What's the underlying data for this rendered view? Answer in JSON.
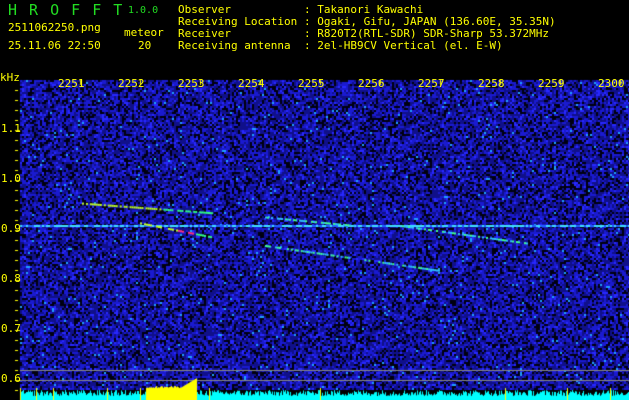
{
  "header": {
    "app_name": "H R O F F T",
    "version": "1.0.0",
    "filename": "2511062250.png",
    "datetime": "25.11.06 22:50",
    "meteor_label": "meteor",
    "meteor_count": "20",
    "info": [
      {
        "label": "Observer",
        "value": ": Takanori Kawachi"
      },
      {
        "label": "Receiving Location",
        "value": ": Ogaki, Gifu, JAPAN (136.60E, 35.35N)"
      },
      {
        "label": "Receiver",
        "value": ": R820T2(RTL-SDR) SDR-Sharp 53.372MHz"
      },
      {
        "label": "Receiving antenna",
        "value": ": 2el-HB9CV Vertical (el. E-W)"
      }
    ]
  },
  "colors": {
    "text": "#ffff00",
    "title": "#22dd22",
    "background_noise": "#1010a0",
    "power_bar": "#00ffff",
    "peak": "#ffff00"
  },
  "chart_data": {
    "type": "heatmap",
    "ylabel": "kHz",
    "x_ticks": [
      "2251",
      "2252",
      "2253",
      "2254",
      "2255",
      "2256",
      "2257",
      "2258",
      "2259",
      "2300"
    ],
    "y_ticks": [
      "1.1",
      "1.0",
      "0.9",
      "0.8",
      "0.7",
      "0.6"
    ],
    "ylim": [
      0.58,
      1.2
    ],
    "carrier_khz": 0.91,
    "meteor_traces": [
      {
        "start_time": "22:51:00",
        "end_time": "22:53:15",
        "freq_start": 0.955,
        "freq_end": 0.935
      },
      {
        "start_time": "22:52:00",
        "end_time": "22:53:12",
        "freq_start": 0.915,
        "freq_end": 0.887
      },
      {
        "start_time": "22:54:05",
        "end_time": "22:55:35",
        "freq_start": 0.927,
        "freq_end": 0.91
      },
      {
        "start_time": "22:54:05",
        "end_time": "22:57:00",
        "freq_start": 0.87,
        "freq_end": 0.82
      },
      {
        "start_time": "22:56:20",
        "end_time": "22:58:30",
        "freq_start": 0.91,
        "freq_end": 0.874
      }
    ]
  }
}
